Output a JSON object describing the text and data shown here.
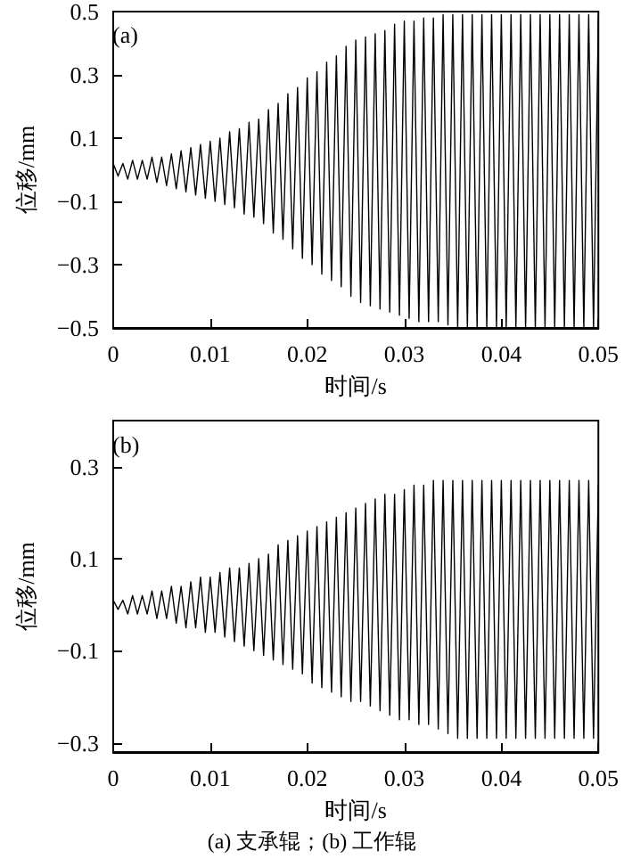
{
  "chart_data": [
    {
      "type": "line",
      "title": "(a)",
      "xlabel": "时间/s",
      "ylabel": "位移/mm",
      "xlim": [
        0,
        0.05
      ],
      "xticks": [
        0,
        0.01,
        0.02,
        0.03,
        0.04,
        0.05
      ],
      "ylim": [
        -0.5,
        0.5
      ],
      "yticks": [
        {
          "value": -0.5,
          "label": "−0.5"
        },
        {
          "value": -0.3,
          "label": "−0.3"
        },
        {
          "value": -0.1,
          "label": "−0.1"
        },
        0.1,
        0.3,
        0.5
      ],
      "x": [
        0,
        0.0005,
        0.001,
        0.0015,
        0.002,
        0.0025,
        0.003,
        0.0035,
        0.004,
        0.0045,
        0.005,
        0.0055,
        0.006,
        0.0065,
        0.007,
        0.0075,
        0.008,
        0.0085,
        0.009,
        0.0095,
        0.01,
        0.0105,
        0.011,
        0.0115,
        0.012,
        0.0125,
        0.013,
        0.0135,
        0.014,
        0.0145,
        0.015,
        0.0155,
        0.016,
        0.0165,
        0.017,
        0.0175,
        0.018,
        0.0185,
        0.019,
        0.0195,
        0.02,
        0.0205,
        0.021,
        0.0215,
        0.022,
        0.0225,
        0.023,
        0.0235,
        0.024,
        0.0245,
        0.025,
        0.0255,
        0.026,
        0.0265,
        0.027,
        0.0275,
        0.028,
        0.0285,
        0.029,
        0.0295,
        0.03,
        0.0305,
        0.031,
        0.0315,
        0.032,
        0.0325,
        0.033,
        0.0335,
        0.034,
        0.0345,
        0.035,
        0.0355,
        0.036,
        0.0365,
        0.037,
        0.0375,
        0.038,
        0.0385,
        0.039,
        0.0395,
        0.04,
        0.0405,
        0.041,
        0.0415,
        0.042,
        0.0425,
        0.043,
        0.0435,
        0.044,
        0.0445,
        0.045,
        0.0455,
        0.046,
        0.0465,
        0.047,
        0.0475,
        0.048,
        0.0485,
        0.049,
        0.0495,
        0.05
      ],
      "series": [
        {
          "color": "#000000",
          "values": [
            0.02,
            -0.02,
            0.02,
            -0.03,
            0.03,
            -0.03,
            0.03,
            -0.03,
            0.04,
            -0.04,
            0.04,
            -0.05,
            0.05,
            -0.06,
            0.06,
            -0.07,
            0.07,
            -0.08,
            0.08,
            -0.09,
            0.09,
            -0.1,
            0.1,
            -0.11,
            0.12,
            -0.12,
            0.13,
            -0.14,
            0.15,
            -0.15,
            0.16,
            -0.17,
            0.19,
            -0.2,
            0.21,
            -0.22,
            0.24,
            -0.25,
            0.26,
            -0.28,
            0.29,
            -0.3,
            0.31,
            -0.33,
            0.34,
            -0.35,
            0.36,
            -0.37,
            0.39,
            -0.4,
            0.41,
            -0.42,
            0.42,
            -0.43,
            0.43,
            -0.44,
            0.44,
            -0.45,
            0.46,
            -0.46,
            0.47,
            -0.47,
            0.47,
            -0.48,
            0.48,
            -0.48,
            0.48,
            -0.48,
            0.49,
            -0.49,
            0.49,
            -0.5,
            0.49,
            -0.5,
            0.49,
            -0.5,
            0.49,
            -0.5,
            0.49,
            -0.5,
            0.49,
            -0.5,
            0.49,
            -0.5,
            0.49,
            -0.5,
            0.49,
            -0.5,
            0.49,
            -0.5,
            0.49,
            -0.5,
            0.49,
            -0.5,
            0.49,
            -0.5,
            0.49,
            -0.5,
            0.49,
            -0.5,
            0.48
          ]
        }
      ]
    },
    {
      "type": "line",
      "title": "(b)",
      "xlabel": "时间/s",
      "ylabel": "位移/mm",
      "annotations": [
        "(a) 支承辊；(b) 工作辊"
      ],
      "xlim": [
        0,
        0.05
      ],
      "xticks": [
        0,
        0.01,
        0.02,
        0.03,
        0.04,
        0.05
      ],
      "ylim": [
        -0.32,
        0.4
      ],
      "yticks": [
        {
          "value": -0.3,
          "label": "−0.3"
        },
        {
          "value": -0.1,
          "label": "−0.1"
        },
        0.1,
        0.3
      ],
      "x": [
        0,
        0.0005,
        0.001,
        0.0015,
        0.002,
        0.0025,
        0.003,
        0.0035,
        0.004,
        0.0045,
        0.005,
        0.0055,
        0.006,
        0.0065,
        0.007,
        0.0075,
        0.008,
        0.0085,
        0.009,
        0.0095,
        0.01,
        0.0105,
        0.011,
        0.0115,
        0.012,
        0.0125,
        0.013,
        0.0135,
        0.014,
        0.0145,
        0.015,
        0.0155,
        0.016,
        0.0165,
        0.017,
        0.0175,
        0.018,
        0.0185,
        0.019,
        0.0195,
        0.02,
        0.0205,
        0.021,
        0.0215,
        0.022,
        0.0225,
        0.023,
        0.0235,
        0.024,
        0.0245,
        0.025,
        0.0255,
        0.026,
        0.0265,
        0.027,
        0.0275,
        0.028,
        0.0285,
        0.029,
        0.0295,
        0.03,
        0.0305,
        0.031,
        0.0315,
        0.032,
        0.0325,
        0.033,
        0.0335,
        0.034,
        0.0345,
        0.035,
        0.0355,
        0.036,
        0.0365,
        0.037,
        0.0375,
        0.038,
        0.0385,
        0.039,
        0.0395,
        0.04,
        0.0405,
        0.041,
        0.0415,
        0.042,
        0.0425,
        0.043,
        0.0435,
        0.044,
        0.0445,
        0.045,
        0.0455,
        0.046,
        0.0465,
        0.047,
        0.0475,
        0.048,
        0.0485,
        0.049,
        0.0495,
        0.05
      ],
      "series": [
        {
          "color": "#000000",
          "values": [
            0.01,
            -0.01,
            0.01,
            -0.02,
            0.02,
            -0.02,
            0.02,
            -0.02,
            0.03,
            -0.03,
            0.03,
            -0.03,
            0.04,
            -0.04,
            0.04,
            -0.05,
            0.05,
            -0.05,
            0.06,
            -0.06,
            0.06,
            -0.06,
            0.07,
            -0.07,
            0.08,
            -0.08,
            0.08,
            -0.09,
            0.09,
            -0.1,
            0.1,
            -0.11,
            0.11,
            -0.12,
            0.13,
            -0.13,
            0.14,
            -0.14,
            0.15,
            -0.15,
            0.16,
            -0.17,
            0.17,
            -0.18,
            0.18,
            -0.19,
            0.19,
            -0.2,
            0.2,
            -0.21,
            0.21,
            -0.21,
            0.22,
            -0.22,
            0.23,
            -0.23,
            0.24,
            -0.24,
            0.24,
            -0.25,
            0.25,
            -0.25,
            0.26,
            -0.26,
            0.26,
            -0.26,
            0.27,
            -0.27,
            0.27,
            -0.28,
            0.27,
            -0.29,
            0.27,
            -0.29,
            0.27,
            -0.29,
            0.27,
            -0.29,
            0.27,
            -0.29,
            0.27,
            -0.29,
            0.27,
            -0.29,
            0.27,
            -0.29,
            0.27,
            -0.29,
            0.27,
            -0.29,
            0.27,
            -0.29,
            0.27,
            -0.29,
            0.27,
            -0.29,
            0.27,
            -0.29,
            0.27,
            -0.29,
            0.26
          ]
        }
      ]
    }
  ]
}
